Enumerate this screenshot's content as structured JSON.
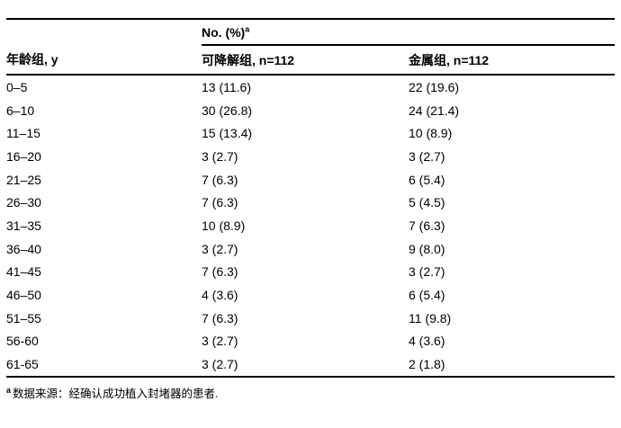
{
  "table": {
    "group_header": "No. (%)",
    "group_header_superscript": "a",
    "columns": [
      "年龄组, y",
      "可降解组, n=112",
      "金属组, n=112"
    ],
    "rows": [
      [
        "0–5",
        "13 (11.6)",
        "22 (19.6)"
      ],
      [
        "6–10",
        "30 (26.8)",
        "24 (21.4)"
      ],
      [
        "11–15",
        "15 (13.4)",
        "10 (8.9)"
      ],
      [
        "16–20",
        "3 (2.7)",
        "3 (2.7)"
      ],
      [
        "21–25",
        "7 (6.3)",
        "6 (5.4)"
      ],
      [
        "26–30",
        "7 (6.3)",
        "5 (4.5)"
      ],
      [
        "31–35",
        "10 (8.9)",
        "7 (6.3)"
      ],
      [
        "36–40",
        "3 (2.7)",
        "9 (8.0)"
      ],
      [
        "41–45",
        "7 (6.3)",
        "3 (2.7)"
      ],
      [
        "46–50",
        "4 (3.6)",
        "6 (5.4)"
      ],
      [
        "51–55",
        "7 (6.3)",
        "11 (9.8)"
      ],
      [
        "56-60",
        "3 (2.7)",
        "4 (3.6)"
      ],
      [
        "61-65",
        "3 (2.7)",
        "2 (1.8)"
      ]
    ],
    "footnote_marker": "a",
    "footnote_text": "数据来源：经确认成功植入封堵器的患者."
  },
  "colors": {
    "text": "#000000",
    "background": "#ffffff",
    "rule": "#000000"
  }
}
